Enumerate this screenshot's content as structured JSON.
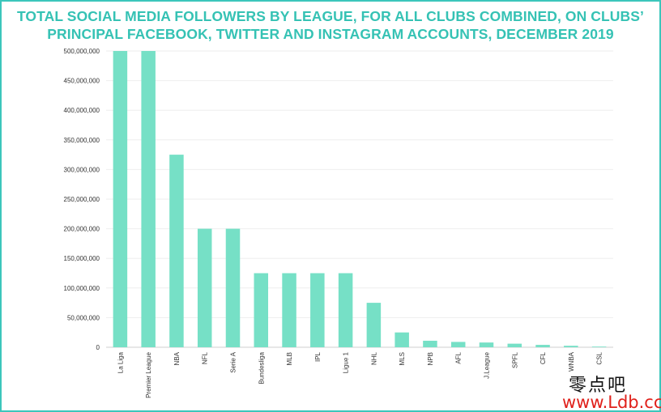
{
  "chart_data": {
    "type": "bar",
    "title_line1": "TOTAL SOCIAL MEDIA FOLLOWERS BY LEAGUE, FOR ALL CLUBS COMBINED, ON CLUBS’",
    "title_line2": "PRINCIPAL FACEBOOK, TWITTER AND INSTAGRAM ACCOUNTS, DECEMBER 2019",
    "categories": [
      "La Liga",
      "Premier League",
      "NBA",
      "NFL",
      "Serie A",
      "Bundesliga",
      "MLB",
      "IPL",
      "Ligue 1",
      "NHL",
      "MLS",
      "NPB",
      "AFL",
      "J.League",
      "SPFL",
      "CFL",
      "WNBA",
      "CSL"
    ],
    "values": [
      500000000,
      500000000,
      325000000,
      200000000,
      200000000,
      125000000,
      125000000,
      125000000,
      125000000,
      75000000,
      25000000,
      11000000,
      9000000,
      8000000,
      6000000,
      4000000,
      2500000,
      400000
    ],
    "ylim": [
      0,
      500000000
    ],
    "yticks": [
      0,
      50000000,
      100000000,
      150000000,
      200000000,
      250000000,
      300000000,
      350000000,
      400000000,
      450000000,
      500000000
    ],
    "ytick_labels": [
      "0",
      "50,000,000",
      "100,000,000",
      "150,000,000",
      "200,000,000",
      "250,000,000",
      "300,000,000",
      "350,000,000",
      "400,000,000",
      "450,000,000",
      "500,000,000"
    ],
    "xlabel": "",
    "ylabel": "",
    "grid": true,
    "bar_color": "#76e0c6"
  },
  "watermark": {
    "line1": "零点吧",
    "line2": "www.Ldb.cc"
  }
}
